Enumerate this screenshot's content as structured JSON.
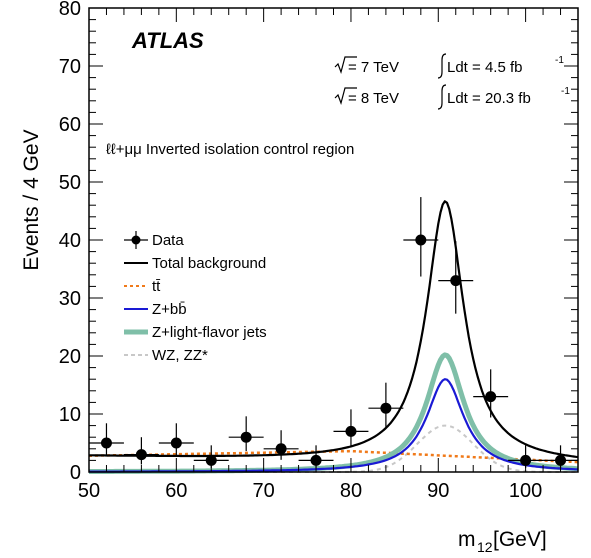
{
  "chart_data": {
    "type": "line",
    "experiment_label": "ATLAS",
    "energy_lines": [
      {
        "sqrt_s": "= 7 TeV",
        "lumi": "Ldt = 4.5 fb",
        "lumi_exp": "-1"
      },
      {
        "sqrt_s": "= 8 TeV",
        "lumi": "Ldt = 20.3 fb",
        "lumi_exp": "-1"
      }
    ],
    "region_label": "ℓℓ+μμ Inverted isolation control region",
    "xlabel": "m",
    "xlabel_sub": "12",
    "xlabel_unit": " [GeV]",
    "ylabel": "Events / 4 GeV",
    "xlim": [
      50,
      106
    ],
    "ylim": [
      0,
      80
    ],
    "xticks": [
      50,
      60,
      70,
      80,
      90,
      100
    ],
    "yticks": [
      0,
      10,
      20,
      30,
      40,
      50,
      60,
      70,
      80
    ],
    "legend_position": "left",
    "legend": [
      {
        "label": "Data",
        "style": "marker",
        "color": "#000000"
      },
      {
        "label": "Total background",
        "style": "solid",
        "color": "#000000"
      },
      {
        "label": "tt̄",
        "style": "dotted",
        "color": "#f07a1a"
      },
      {
        "label": "Z+bb̄",
        "style": "solid",
        "color": "#1a1ad4"
      },
      {
        "label": "Z+light-flavor jets",
        "style": "thick",
        "color": "#7fbfa8"
      },
      {
        "label": "WZ, ZZ*",
        "style": "dashed",
        "color": "#c8c8c8"
      }
    ],
    "data_points": [
      {
        "x": 52,
        "y": 5,
        "yerr_up": 3.4,
        "yerr_dn": 2.2
      },
      {
        "x": 56,
        "y": 3,
        "yerr_up": 3.0,
        "yerr_dn": 1.7
      },
      {
        "x": 60,
        "y": 5,
        "yerr_up": 3.4,
        "yerr_dn": 2.2
      },
      {
        "x": 64,
        "y": 2,
        "yerr_up": 2.6,
        "yerr_dn": 1.3
      },
      {
        "x": 68,
        "y": 6,
        "yerr_up": 3.6,
        "yerr_dn": 2.4
      },
      {
        "x": 72,
        "y": 4,
        "yerr_up": 3.2,
        "yerr_dn": 1.9
      },
      {
        "x": 76,
        "y": 2,
        "yerr_up": 2.6,
        "yerr_dn": 1.3
      },
      {
        "x": 80,
        "y": 7,
        "yerr_up": 3.8,
        "yerr_dn": 2.6
      },
      {
        "x": 84,
        "y": 11,
        "yerr_up": 4.4,
        "yerr_dn": 3.3
      },
      {
        "x": 88,
        "y": 40,
        "yerr_up": 7.4,
        "yerr_dn": 6.3
      },
      {
        "x": 92,
        "y": 33,
        "yerr_up": 6.8,
        "yerr_dn": 5.7
      },
      {
        "x": 96,
        "y": 13,
        "yerr_up": 4.7,
        "yerr_dn": 3.6
      },
      {
        "x": 100,
        "y": 2,
        "yerr_up": 2.6,
        "yerr_dn": 1.3
      },
      {
        "x": 104,
        "y": 2,
        "yerr_up": 2.6,
        "yerr_dn": 1.3
      }
    ],
    "curves": {
      "peak_position": 90.8,
      "total_background": {
        "peak": 47,
        "width": 2.6,
        "base_at_50": 2.7,
        "base_at_106": 1.3
      },
      "z_light": {
        "peak": 20.2,
        "width": 2.6
      },
      "z_bb": {
        "peak": 16,
        "width": 2.6
      },
      "ttbar": {
        "at_50": 2.8,
        "at_80": 3.6,
        "at_106": 1.7
      },
      "wz_zz": {
        "peak": 8,
        "width": 3.2
      }
    }
  }
}
